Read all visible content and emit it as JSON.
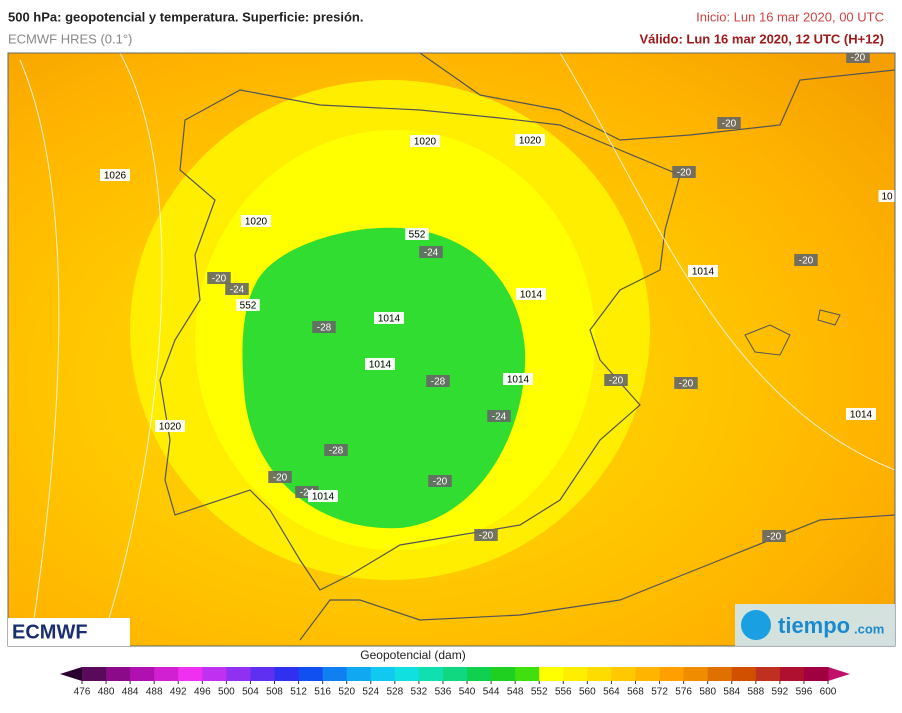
{
  "header": {
    "title": "500 hPa: geopotencial y temperatura. Superficie: presión.",
    "model": "ECMWF HRES (0.1°)",
    "init": "Inicio: Lun 16 mar 2020, 00 UTC",
    "valid": "Válido: Lun 16 mar 2020, 12 UTC (H+12)"
  },
  "map_labels": [
    "1026",
    "1020",
    "1020",
    "1020",
    "552",
    "-24",
    "-20",
    "-24",
    "552",
    "1014",
    "-28",
    "1014",
    "-28",
    "1014",
    "1014",
    "-20",
    "-20",
    "1014",
    "-20",
    "-20",
    "-20",
    "-20",
    "10",
    "-24",
    "1020",
    "-28",
    "-20",
    "-24",
    "1014",
    "-20",
    "-20",
    "-20",
    "1014"
  ],
  "logos": {
    "left": "ECMWF",
    "right": "tiempo",
    "right_suffix": ".com"
  },
  "colorbar": {
    "label": "Geopotencial (dam)",
    "ticks": [
      476,
      480,
      484,
      488,
      492,
      496,
      500,
      504,
      508,
      512,
      516,
      520,
      524,
      528,
      532,
      536,
      540,
      544,
      548,
      552,
      556,
      560,
      564,
      568,
      572,
      576,
      580,
      584,
      588,
      592,
      596,
      600
    ],
    "colors": [
      "#5a0a5a",
      "#8a0a8a",
      "#b010b0",
      "#d020d0",
      "#f030f0",
      "#c030f0",
      "#9030f0",
      "#6030f0",
      "#3030f0",
      "#1050f0",
      "#1080f0",
      "#10a8f0",
      "#10c8f0",
      "#10e0e0",
      "#10e0b0",
      "#10d880",
      "#10d050",
      "#20d020",
      "#40e010",
      "#ffff00",
      "#ffee00",
      "#ffdc00",
      "#ffc800",
      "#ffb400",
      "#ffa000",
      "#f08c00",
      "#e07000",
      "#d05000",
      "#c03020",
      "#b01030",
      "#a00040"
    ],
    "under_color": "#2a0030",
    "over_color": "#c0106a"
  }
}
